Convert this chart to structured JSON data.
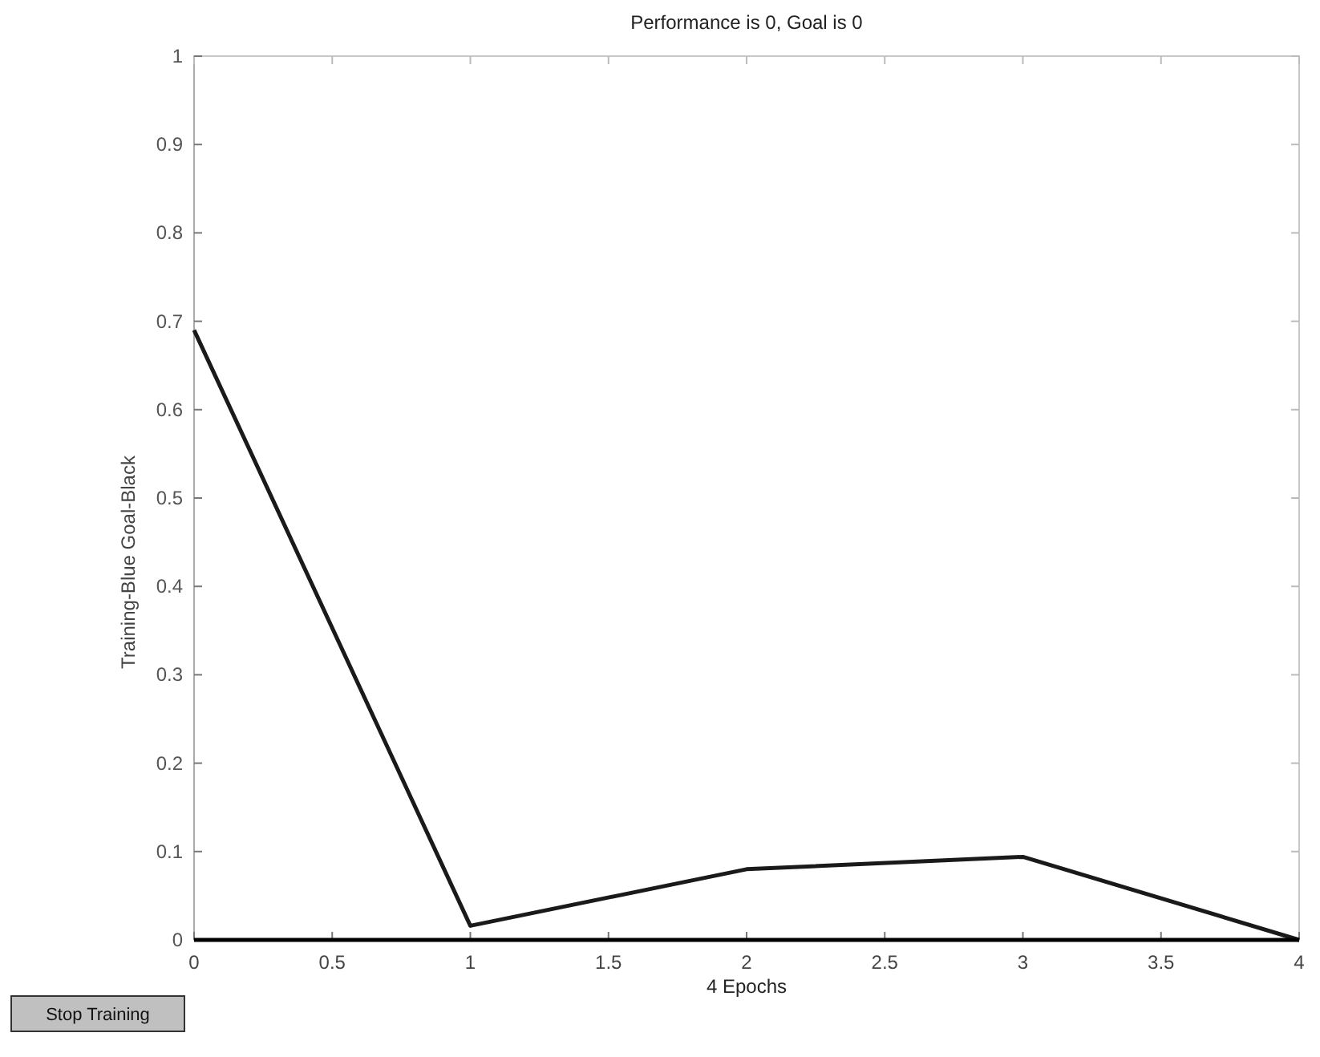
{
  "chart_data": {
    "type": "line",
    "title": "Performance is 0, Goal is 0",
    "xlabel": "4 Epochs",
    "ylabel": "Training-Blue  Goal-Black",
    "x": [
      0,
      1,
      2,
      3,
      4
    ],
    "series": [
      {
        "color": "#1a1a1a",
        "values": [
          0.69,
          0.016,
          0.08,
          0.094,
          0
        ]
      },
      {
        "color": "#000000",
        "x": [
          0,
          4
        ],
        "values": [
          0,
          0
        ]
      }
    ],
    "xlim": [
      0,
      4
    ],
    "xticks": [
      0,
      0.5,
      1,
      1.5,
      2,
      2.5,
      3,
      3.5,
      4
    ],
    "ylim": [
      0,
      1
    ],
    "yticks": [
      0,
      0.1,
      0.2,
      0.3,
      0.4,
      0.5,
      0.6,
      0.7,
      0.8,
      0.9,
      1
    ],
    "annotations": [
      "Stop Training"
    ],
    "grid": false,
    "marker": "none",
    "line_style": "solid"
  }
}
